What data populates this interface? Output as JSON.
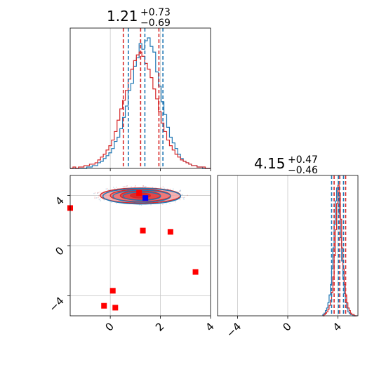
{
  "chart_data": [
    {
      "panel": "marginal-1",
      "type": "histogram",
      "title": {
        "value": "1.21",
        "upper": "+0.73",
        "lower": "−0.69"
      },
      "median": 1.21,
      "quantiles": {
        "red": [
          0.52,
          1.21,
          1.94
        ],
        "blue": [
          0.72,
          1.38,
          2.1
        ]
      },
      "xlim": [
        -1.6,
        4.0
      ],
      "xticks": [
        0,
        2,
        4
      ],
      "grid": true,
      "bins": [
        -1.6,
        -1.49,
        -1.38,
        -1.27,
        -1.16,
        -1.05,
        -0.94,
        -0.83,
        -0.72,
        -0.61,
        -0.5,
        -0.39,
        -0.28,
        -0.17,
        -0.06,
        0.05,
        0.16,
        0.27,
        0.38,
        0.49,
        0.6,
        0.71,
        0.82,
        0.93,
        1.04,
        1.15,
        1.26,
        1.37,
        1.48,
        1.59,
        1.7,
        1.81,
        1.92,
        2.03,
        2.14,
        2.25,
        2.36,
        2.47,
        2.58,
        2.69,
        2.8,
        2.91,
        3.02,
        3.13,
        3.24,
        3.35,
        3.46,
        3.57,
        3.68,
        3.79,
        3.9,
        4.0
      ],
      "series": [
        {
          "color": "#1f77b4",
          "counts": [
            0,
            0,
            0,
            0,
            0,
            0,
            1,
            1,
            2,
            2,
            4,
            5,
            7,
            9,
            11,
            14,
            19,
            22,
            28,
            36,
            44,
            55,
            60,
            72,
            78,
            88,
            84,
            90,
            92,
            86,
            82,
            68,
            58,
            47,
            38,
            29,
            22,
            18,
            14,
            10,
            7,
            5,
            4,
            3,
            2,
            2,
            1,
            1,
            0,
            0,
            0
          ]
        },
        {
          "color": "#d62728",
          "counts": [
            0,
            1,
            0,
            1,
            1,
            2,
            2,
            3,
            3,
            4,
            6,
            8,
            10,
            13,
            16,
            20,
            26,
            34,
            42,
            48,
            55,
            63,
            70,
            76,
            80,
            82,
            79,
            74,
            70,
            64,
            56,
            49,
            40,
            32,
            26,
            20,
            16,
            13,
            10,
            8,
            6,
            5,
            4,
            3,
            2,
            2,
            1,
            1,
            1,
            0,
            0
          ]
        }
      ]
    },
    {
      "panel": "joint-2d",
      "type": "scatter",
      "xlim": [
        -1.6,
        4.0
      ],
      "ylim": [
        -5.6,
        5.6
      ],
      "xticks": [
        0,
        2,
        4
      ],
      "yticks": [
        -4,
        0,
        4
      ],
      "grid": true,
      "xlabel": "",
      "ylabel": "",
      "contours": {
        "center": [
          1.2,
          4.0
        ],
        "red_levels": [
          [
            1.6,
            0.6
          ],
          [
            1.2,
            0.48
          ],
          [
            0.8,
            0.36
          ],
          [
            0.4,
            0.2
          ]
        ],
        "blue_levels": [
          [
            1.55,
            0.62
          ],
          [
            1.15,
            0.47
          ],
          [
            0.75,
            0.33
          ]
        ]
      },
      "markers": [
        {
          "x": -1.6,
          "y": 3.0,
          "color": "#ff0000"
        },
        {
          "x": 1.15,
          "y": 4.2,
          "color": "#ff0000"
        },
        {
          "x": 1.3,
          "y": 1.2,
          "color": "#ff0000"
        },
        {
          "x": 2.4,
          "y": 1.1,
          "color": "#ff0000"
        },
        {
          "x": 3.4,
          "y": -2.1,
          "color": "#ff0000"
        },
        {
          "x": 0.1,
          "y": -3.6,
          "color": "#ff0000"
        },
        {
          "x": -0.25,
          "y": -4.8,
          "color": "#ff0000"
        },
        {
          "x": 0.2,
          "y": -4.95,
          "color": "#ff0000"
        },
        {
          "x": 1.4,
          "y": 3.8,
          "color": "#0000ff"
        }
      ]
    },
    {
      "panel": "marginal-2",
      "type": "histogram",
      "title": {
        "value": "4.15",
        "upper": "+0.47",
        "lower": "−0.46"
      },
      "median": 4.15,
      "quantiles": {
        "red": [
          3.7,
          4.15,
          4.62
        ],
        "blue": [
          3.5,
          4.05,
          4.45
        ]
      },
      "xlim": [
        -5.6,
        5.6
      ],
      "xticks": [
        -4,
        0,
        4
      ],
      "grid": true,
      "bins": [
        2.8,
        2.9,
        3.0,
        3.1,
        3.2,
        3.3,
        3.4,
        3.5,
        3.6,
        3.7,
        3.8,
        3.9,
        4.0,
        4.1,
        4.2,
        4.3,
        4.4,
        4.5,
        4.6,
        4.7,
        4.8,
        4.9,
        5.0,
        5.1,
        5.2,
        5.3,
        5.4,
        5.5
      ],
      "series": [
        {
          "color": "#1f77b4",
          "counts": [
            1,
            2,
            4,
            6,
            10,
            16,
            24,
            36,
            52,
            70,
            88,
            98,
            92,
            78,
            60,
            42,
            28,
            17,
            10,
            6,
            3,
            2,
            1,
            1,
            0,
            0,
            0
          ]
        },
        {
          "color": "#d62728",
          "counts": [
            0,
            1,
            2,
            3,
            5,
            8,
            12,
            18,
            30,
            46,
            66,
            86,
            100,
            94,
            74,
            52,
            36,
            24,
            16,
            10,
            6,
            4,
            2,
            1,
            1,
            0,
            0
          ]
        }
      ]
    }
  ],
  "colors": {
    "blue": "#1f77b4",
    "red": "#d62728",
    "marker_red": "#ff0000",
    "marker_blue": "#0000ff",
    "grid": "#c8c8c8",
    "axis": "#000000"
  }
}
